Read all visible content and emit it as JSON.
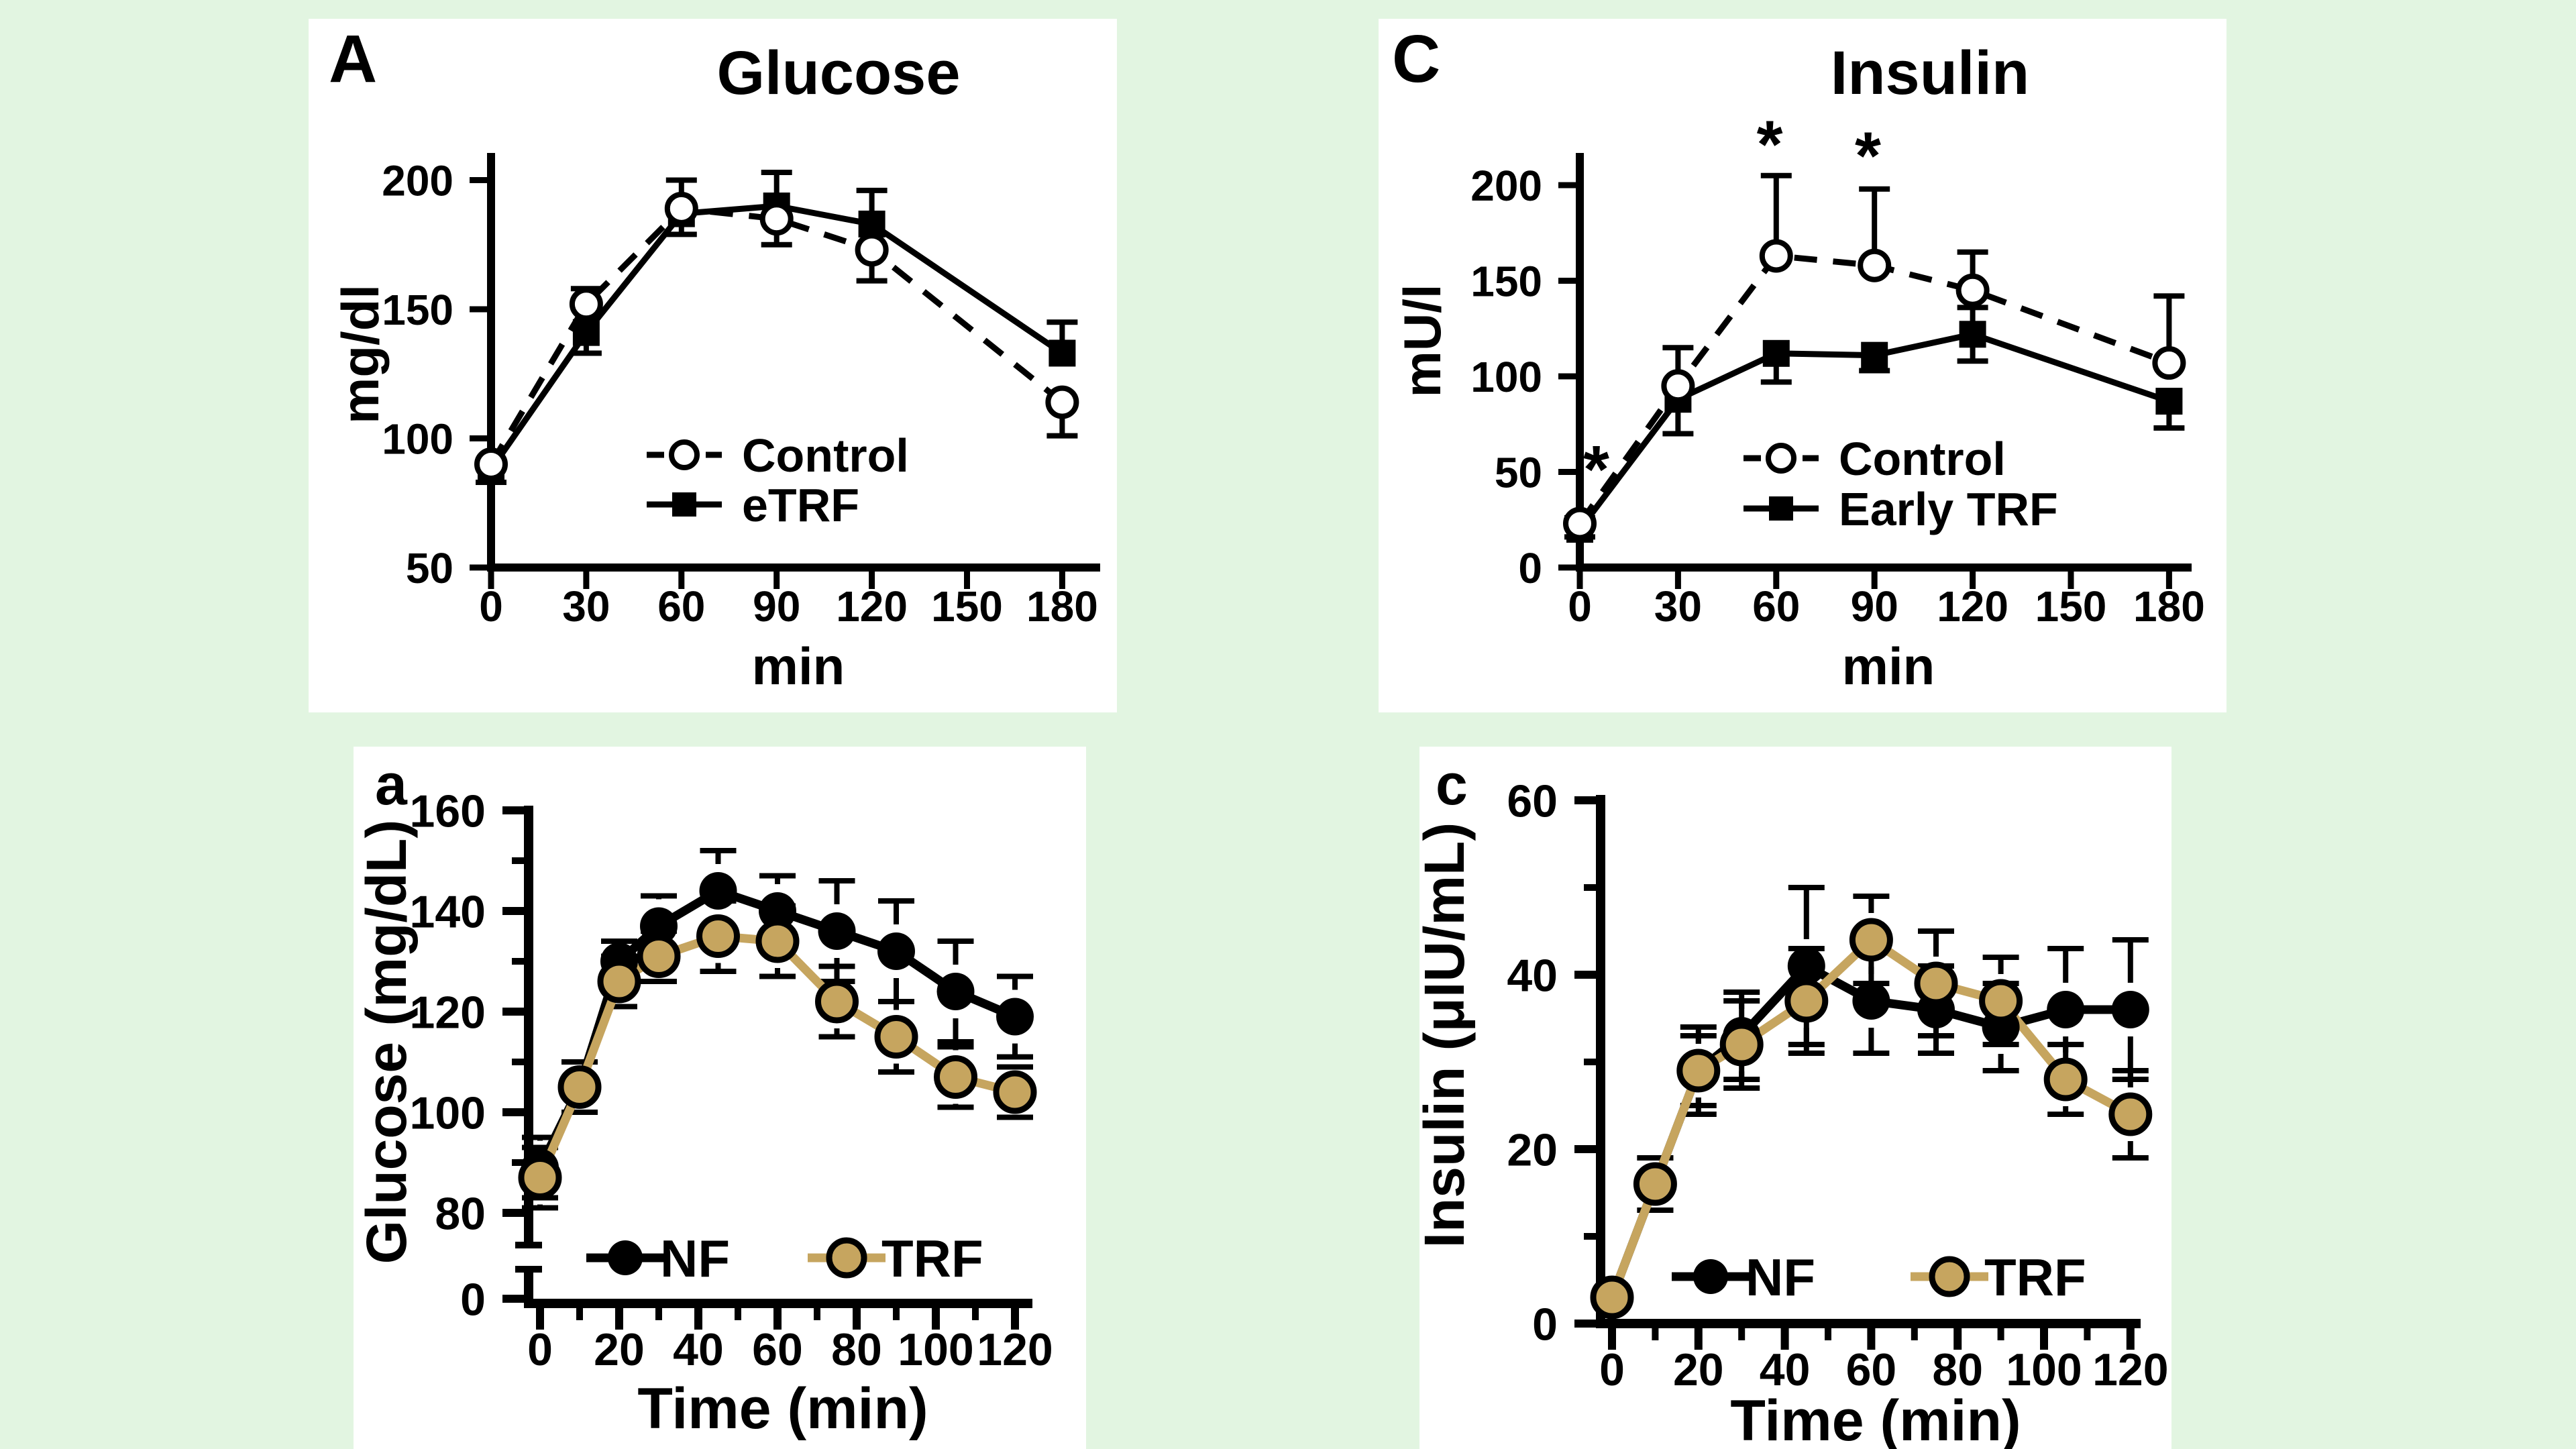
{
  "page": {
    "background": "#E2F5E1",
    "panel_background": "#FFFFFF",
    "ink_color": "#000000",
    "tan_color": "#C6A55F"
  },
  "chart_data": [
    {
      "id": "A",
      "type": "line",
      "panel_label": "A",
      "title": "Glucose",
      "xlabel": "min",
      "ylabel": "mg/dl",
      "x_ticks": [
        0,
        30,
        60,
        90,
        120,
        150,
        180
      ],
      "y_ticks": [
        50,
        100,
        150,
        200
      ],
      "xlim": [
        0,
        180
      ],
      "ylim": [
        50,
        205
      ],
      "grid": false,
      "legend_position": "inside-bottom-center",
      "series": [
        {
          "name": "eTRF",
          "marker": "filled-square",
          "line_style": "solid",
          "color": "#000000",
          "x": [
            0,
            30,
            60,
            90,
            120,
            180
          ],
          "y": [
            88,
            141,
            187,
            190,
            183,
            133
          ],
          "err_up": [
            0,
            0,
            0,
            13,
            13,
            12
          ],
          "err_down": [
            5,
            8,
            8,
            0,
            0,
            0
          ]
        },
        {
          "name": "Control",
          "marker": "open-circle",
          "line_style": "dashed",
          "color": "#000000",
          "x": [
            0,
            30,
            60,
            90,
            120,
            180
          ],
          "y": [
            90,
            152,
            189,
            185,
            173,
            114
          ],
          "err_up": [
            0,
            6,
            11,
            0,
            0,
            0
          ],
          "err_down": [
            0,
            0,
            0,
            10,
            12,
            13
          ]
        }
      ],
      "legend_order": [
        "Control",
        "eTRF"
      ],
      "annotations": []
    },
    {
      "id": "C",
      "type": "line",
      "panel_label": "C",
      "title": "Insulin",
      "xlabel": "min",
      "ylabel": "mU/l",
      "x_ticks": [
        0,
        30,
        60,
        90,
        120,
        150,
        180
      ],
      "y_ticks": [
        0,
        50,
        100,
        150,
        200
      ],
      "xlim": [
        0,
        180
      ],
      "ylim": [
        0,
        205
      ],
      "grid": false,
      "legend_position": "inside-bottom-center",
      "series": [
        {
          "name": "Early TRF",
          "marker": "filled-square",
          "line_style": "solid",
          "color": "#000000",
          "x": [
            0,
            30,
            60,
            90,
            120,
            180
          ],
          "y": [
            20,
            88,
            112,
            111,
            122,
            87
          ],
          "err_up": [
            0,
            0,
            0,
            0,
            14,
            0
          ],
          "err_down": [
            4,
            18,
            15,
            8,
            14,
            14
          ]
        },
        {
          "name": "Control",
          "marker": "open-circle",
          "line_style": "dashed",
          "color": "#000000",
          "x": [
            0,
            30,
            60,
            90,
            120,
            180
          ],
          "y": [
            23,
            95,
            163,
            158,
            145,
            107
          ],
          "err_up": [
            3,
            20,
            42,
            40,
            20,
            35
          ],
          "err_down": [
            0,
            0,
            0,
            0,
            0,
            0
          ]
        }
      ],
      "legend_order": [
        "Control",
        "Early TRF"
      ],
      "annotations": [
        {
          "text": "*",
          "x": 5,
          "y": 52
        },
        {
          "text": "*",
          "x": 58,
          "y": 222
        },
        {
          "text": "*",
          "x": 88,
          "y": 216
        }
      ]
    },
    {
      "id": "a",
      "type": "line",
      "panel_label": "a",
      "title": "",
      "xlabel": "Time (min)",
      "ylabel": "Glucose (mg/dL)",
      "x_ticks": [
        0,
        20,
        40,
        60,
        80,
        100,
        120
      ],
      "x_minor_ticks": [
        10,
        30,
        50,
        70,
        90,
        110
      ],
      "y_ticks": [
        0,
        80,
        100,
        120,
        140,
        160
      ],
      "y_minor_ticks": [
        90,
        110,
        130,
        150
      ],
      "y_axis_break": true,
      "xlim": [
        0,
        120
      ],
      "ylim": [
        80,
        160
      ],
      "grid": false,
      "legend_position": "inside-bottom-row",
      "series": [
        {
          "name": "NF",
          "marker": "dot",
          "line_style": "solid",
          "color": "#000000",
          "x": [
            0,
            10,
            20,
            30,
            45,
            60,
            75,
            90,
            105,
            120
          ],
          "y": [
            89,
            105,
            130,
            137,
            144,
            140,
            136,
            132,
            124,
            119
          ],
          "err_up": [
            6,
            5,
            4,
            6,
            8,
            7,
            10,
            10,
            10,
            8
          ],
          "err_down": [
            6,
            5,
            4,
            6,
            8,
            7,
            10,
            10,
            10,
            8
          ]
        },
        {
          "name": "TRF",
          "marker": "ring-dot",
          "line_style": "solid",
          "color": "#C6A55F",
          "x": [
            0,
            10,
            20,
            30,
            45,
            60,
            75,
            90,
            105,
            120
          ],
          "y": [
            87,
            105,
            126,
            131,
            135,
            134,
            122,
            115,
            107,
            104
          ],
          "err_up": [
            6,
            5,
            5,
            5,
            7,
            7,
            7,
            7,
            6,
            5
          ],
          "err_down": [
            6,
            5,
            5,
            5,
            7,
            7,
            7,
            7,
            6,
            5
          ]
        }
      ],
      "legend_order": [
        "NF",
        "TRF"
      ],
      "annotations": []
    },
    {
      "id": "c",
      "type": "line",
      "panel_label": "c",
      "title": "",
      "xlabel": "Time (min)",
      "ylabel": "Insulin (μIU/mL)",
      "x_ticks": [
        0,
        20,
        40,
        60,
        80,
        100,
        120
      ],
      "x_minor_ticks": [
        10,
        30,
        50,
        70,
        90,
        110
      ],
      "y_ticks": [
        0,
        20,
        40,
        60
      ],
      "y_minor_ticks": [
        10,
        30,
        50
      ],
      "xlim": [
        0,
        120
      ],
      "ylim": [
        0,
        60
      ],
      "grid": false,
      "legend_position": "inside-bottom-row",
      "series": [
        {
          "name": "NF",
          "marker": "dot",
          "line_style": "solid",
          "color": "#000000",
          "x": [
            0,
            10,
            20,
            30,
            45,
            60,
            75,
            90,
            105,
            120
          ],
          "y": [
            3,
            16,
            29,
            33,
            41,
            37,
            36,
            34,
            36,
            36
          ],
          "err_up": [
            1,
            3,
            4,
            5,
            9,
            6,
            5,
            5,
            7,
            8
          ],
          "err_down": [
            1,
            3,
            4,
            5,
            9,
            6,
            5,
            5,
            7,
            8
          ]
        },
        {
          "name": "TRF",
          "marker": "ring-dot",
          "line_style": "solid",
          "color": "#C6A55F",
          "x": [
            0,
            10,
            20,
            30,
            45,
            60,
            75,
            90,
            105,
            120
          ],
          "y": [
            3,
            16,
            29,
            32,
            37,
            44,
            39,
            37,
            28,
            24
          ],
          "err_up": [
            1,
            3,
            5,
            5,
            6,
            5,
            6,
            5,
            4,
            5
          ],
          "err_down": [
            1,
            3,
            5,
            5,
            6,
            5,
            6,
            5,
            4,
            5
          ]
        }
      ],
      "legend_order": [
        "NF",
        "TRF"
      ],
      "annotations": []
    }
  ]
}
